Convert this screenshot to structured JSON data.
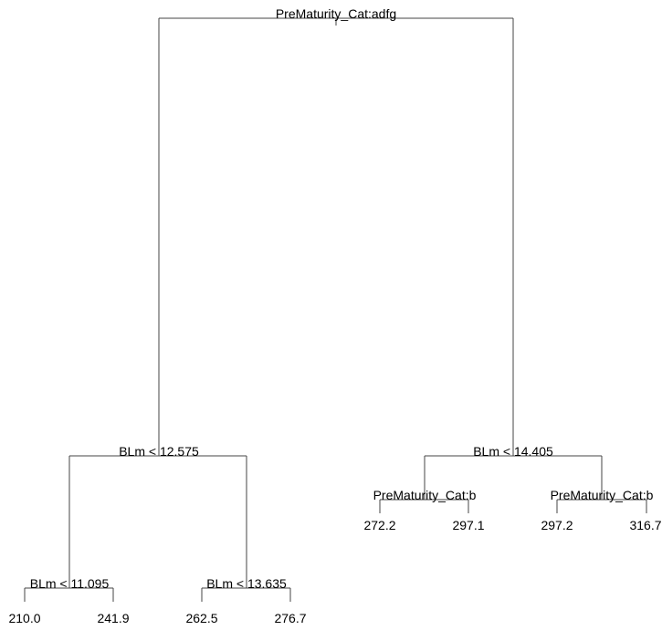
{
  "nodes": [
    {
      "label": "PreMaturity_Cat:adfg"
    },
    {
      "label": "BLm < 12.575"
    },
    {
      "label": "BLm < 14.405"
    },
    {
      "label": "BLm < 11.095"
    },
    {
      "label": "BLm < 13.635"
    },
    {
      "label": "PreMaturity_Cat:b"
    },
    {
      "label": "PreMaturity_Cat:b"
    }
  ],
  "leaves": [
    "210.0",
    "241.9",
    "262.5",
    "276.7",
    "272.2",
    "297.1",
    "297.2",
    "316.7"
  ]
}
